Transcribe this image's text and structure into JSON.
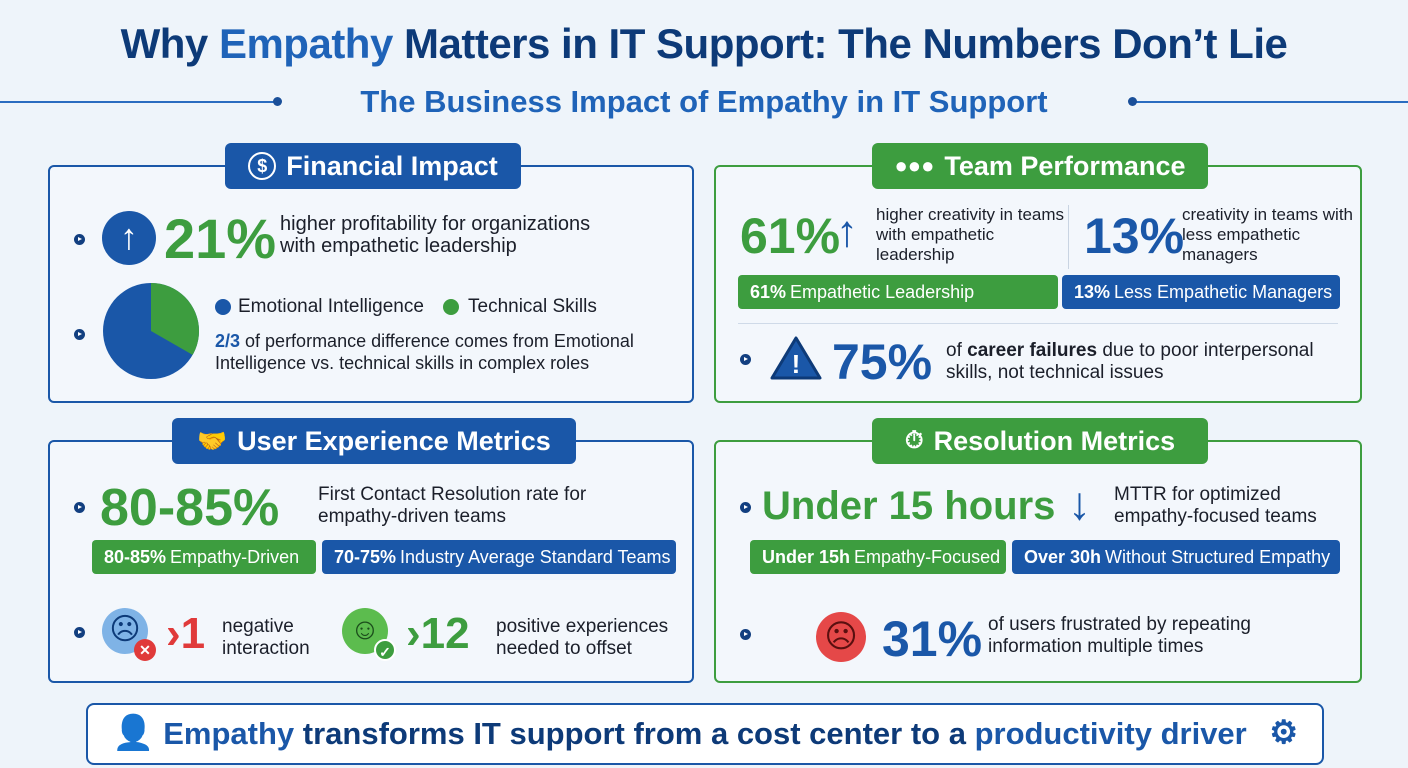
{
  "title": {
    "pre": "Why ",
    "highlight": "Empathy",
    "post": " Matters in IT Support: The Numbers Don’t Lie"
  },
  "subtitle": "The Business Impact of Empathy in IT Support",
  "colors": {
    "navy": "#0d3a78",
    "blue": "#1a57a8",
    "green": "#3d9d3f",
    "background": "#eef4fa",
    "red": "#e03a3a"
  },
  "financial": {
    "heading": "Financial Impact",
    "icon": "dollar-icon",
    "stat": "21%",
    "stat_text": "higher profitability for organizations with empathetic leadership",
    "legend": [
      "Emotional Intelligence",
      "Technical Skills"
    ],
    "pie_share_emotional_intelligence": 0.667,
    "fraction": "2/3",
    "fraction_text": " of performance difference comes from Emotional Intelligence vs. technical skills in complex roles"
  },
  "team": {
    "heading": "Team Performance",
    "icon": "people-icon",
    "stat1": "61%",
    "stat1_text": "higher creativity in teams with empathetic leadership",
    "stat2": "13%",
    "stat2_text": "creativity in teams with less empathetic managers",
    "pill1_value": "61%",
    "pill1_label": "Empathetic Leadership",
    "pill2_value": "13%",
    "pill2_label": "Less Empathetic Managers",
    "stat3": "75%",
    "stat3_pre": "of ",
    "stat3_bold": "career failures",
    "stat3_post": " due to poor interpersonal skills, not technical issues"
  },
  "ux": {
    "heading": "User Experience Metrics",
    "icon": "handshake-icon",
    "stat": "80-85%",
    "stat_text": "First Contact Resolution rate for empathy-driven teams",
    "pill1_value": "80-85%",
    "pill1_label": "Empathy-Driven",
    "pill2_value": "70-75%",
    "pill2_label": "Industry Average Standard Teams",
    "neg_value": "1",
    "neg_text": "negative interaction",
    "pos_value": "12",
    "pos_text": "positive experiences needed to offset"
  },
  "resolution": {
    "heading": "Resolution Metrics",
    "icon": "clock-gear-icon",
    "stat": "Under 15 hours",
    "stat_text": "MTTR for optimized empathy-focused teams",
    "pill1_value": "Under 15h",
    "pill1_label": "Empathy-Focused",
    "pill2_value": "Over 30h",
    "pill2_label": "Without Structured Empathy",
    "stat2": "31%",
    "stat2_text": "of users frustrated by repeating information multiple times"
  },
  "footer": {
    "w1": "Empathy",
    "mid": " transforms IT support from a cost center to a ",
    "w2": "productivity driver"
  }
}
